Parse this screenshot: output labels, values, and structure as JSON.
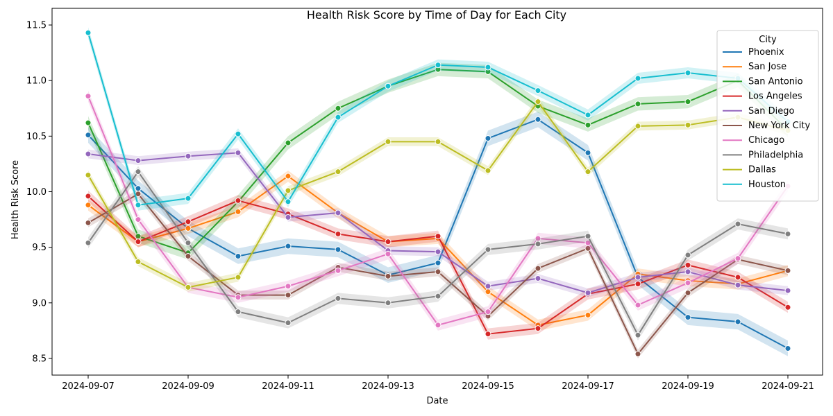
{
  "chart_data": {
    "type": "line",
    "title": "Health Risk Score by Time of Day for Each City",
    "xlabel": "Date",
    "ylabel": "Health Risk Score",
    "x": [
      "2024-09-07",
      "2024-09-08",
      "2024-09-09",
      "2024-09-10",
      "2024-09-11",
      "2024-09-12",
      "2024-09-13",
      "2024-09-14",
      "2024-09-15",
      "2024-09-16",
      "2024-09-17",
      "2024-09-18",
      "2024-09-19",
      "2024-09-20",
      "2024-09-21"
    ],
    "x_ticks": [
      "2024-09-07",
      "2024-09-09",
      "2024-09-11",
      "2024-09-13",
      "2024-09-15",
      "2024-09-17",
      "2024-09-19",
      "2024-09-21"
    ],
    "y_ticks": [
      8.5,
      9.0,
      9.5,
      10.0,
      10.5,
      11.0,
      11.5
    ],
    "y_tick_labels": [
      "8.5",
      "9.0",
      "9.5",
      "10.0",
      "10.5",
      "11.0",
      "11.5"
    ],
    "ylim": [
      8.35,
      11.65
    ],
    "grid": false,
    "legend": {
      "title": "City",
      "position": "top-right"
    },
    "series": [
      {
        "name": "Phoenix",
        "color": "#1f77b4",
        "ci": 0.07,
        "values": [
          10.51,
          10.03,
          9.67,
          9.42,
          9.51,
          9.48,
          9.25,
          9.36,
          10.48,
          10.65,
          10.35,
          9.23,
          8.87,
          8.83,
          8.59
        ]
      },
      {
        "name": "San Jose",
        "color": "#ff7f0e",
        "ci": 0.05,
        "values": [
          9.88,
          9.55,
          9.67,
          9.82,
          10.14,
          9.81,
          9.55,
          9.58,
          9.1,
          8.8,
          8.89,
          9.26,
          9.2,
          9.17,
          9.29
        ]
      },
      {
        "name": "San Antonio",
        "color": "#2ca02c",
        "ci": 0.06,
        "values": [
          10.62,
          9.6,
          9.45,
          9.91,
          10.44,
          10.75,
          10.95,
          11.1,
          11.08,
          10.77,
          10.6,
          10.79,
          10.81,
          11.0,
          10.55
        ]
      },
      {
        "name": "Los Angeles",
        "color": "#d62728",
        "ci": 0.05,
        "values": [
          9.96,
          9.55,
          9.73,
          9.92,
          9.8,
          9.62,
          9.55,
          9.6,
          8.72,
          8.77,
          9.08,
          9.17,
          9.34,
          9.23,
          8.96
        ]
      },
      {
        "name": "San Diego",
        "color": "#9467bd",
        "ci": 0.04,
        "values": [
          10.34,
          10.28,
          10.32,
          10.35,
          9.77,
          9.81,
          9.47,
          9.46,
          9.15,
          9.22,
          9.09,
          9.23,
          9.28,
          9.16,
          9.11
        ]
      },
      {
        "name": "New York City",
        "color": "#8c564b",
        "ci": 0.04,
        "values": [
          9.72,
          9.98,
          9.42,
          9.07,
          9.07,
          9.32,
          9.24,
          9.28,
          8.88,
          9.31,
          9.49,
          8.54,
          9.09,
          9.39,
          9.29
        ]
      },
      {
        "name": "Chicago",
        "color": "#e377c2",
        "ci": 0.05,
        "values": [
          10.86,
          9.75,
          9.14,
          9.05,
          9.15,
          9.29,
          9.44,
          8.8,
          8.92,
          9.58,
          9.54,
          8.98,
          9.18,
          9.4,
          10.05
        ]
      },
      {
        "name": "Philadelphia",
        "color": "#7f7f7f",
        "ci": 0.05,
        "values": [
          9.54,
          10.18,
          9.54,
          8.92,
          8.82,
          9.04,
          9.0,
          9.06,
          9.48,
          9.53,
          9.6,
          8.71,
          9.43,
          9.71,
          9.62
        ]
      },
      {
        "name": "Dallas",
        "color": "#bcbd22",
        "ci": 0.04,
        "values": [
          10.15,
          9.37,
          9.14,
          9.23,
          10.01,
          10.18,
          10.45,
          10.45,
          10.19,
          10.81,
          10.18,
          10.59,
          10.6,
          10.67,
          10.55
        ]
      },
      {
        "name": "Houston",
        "color": "#17becf",
        "ci": 0.05,
        "values": [
          11.43,
          9.88,
          9.94,
          10.52,
          9.91,
          10.67,
          10.95,
          11.14,
          11.12,
          10.91,
          10.69,
          11.02,
          11.07,
          11.02,
          10.63
        ]
      }
    ]
  }
}
